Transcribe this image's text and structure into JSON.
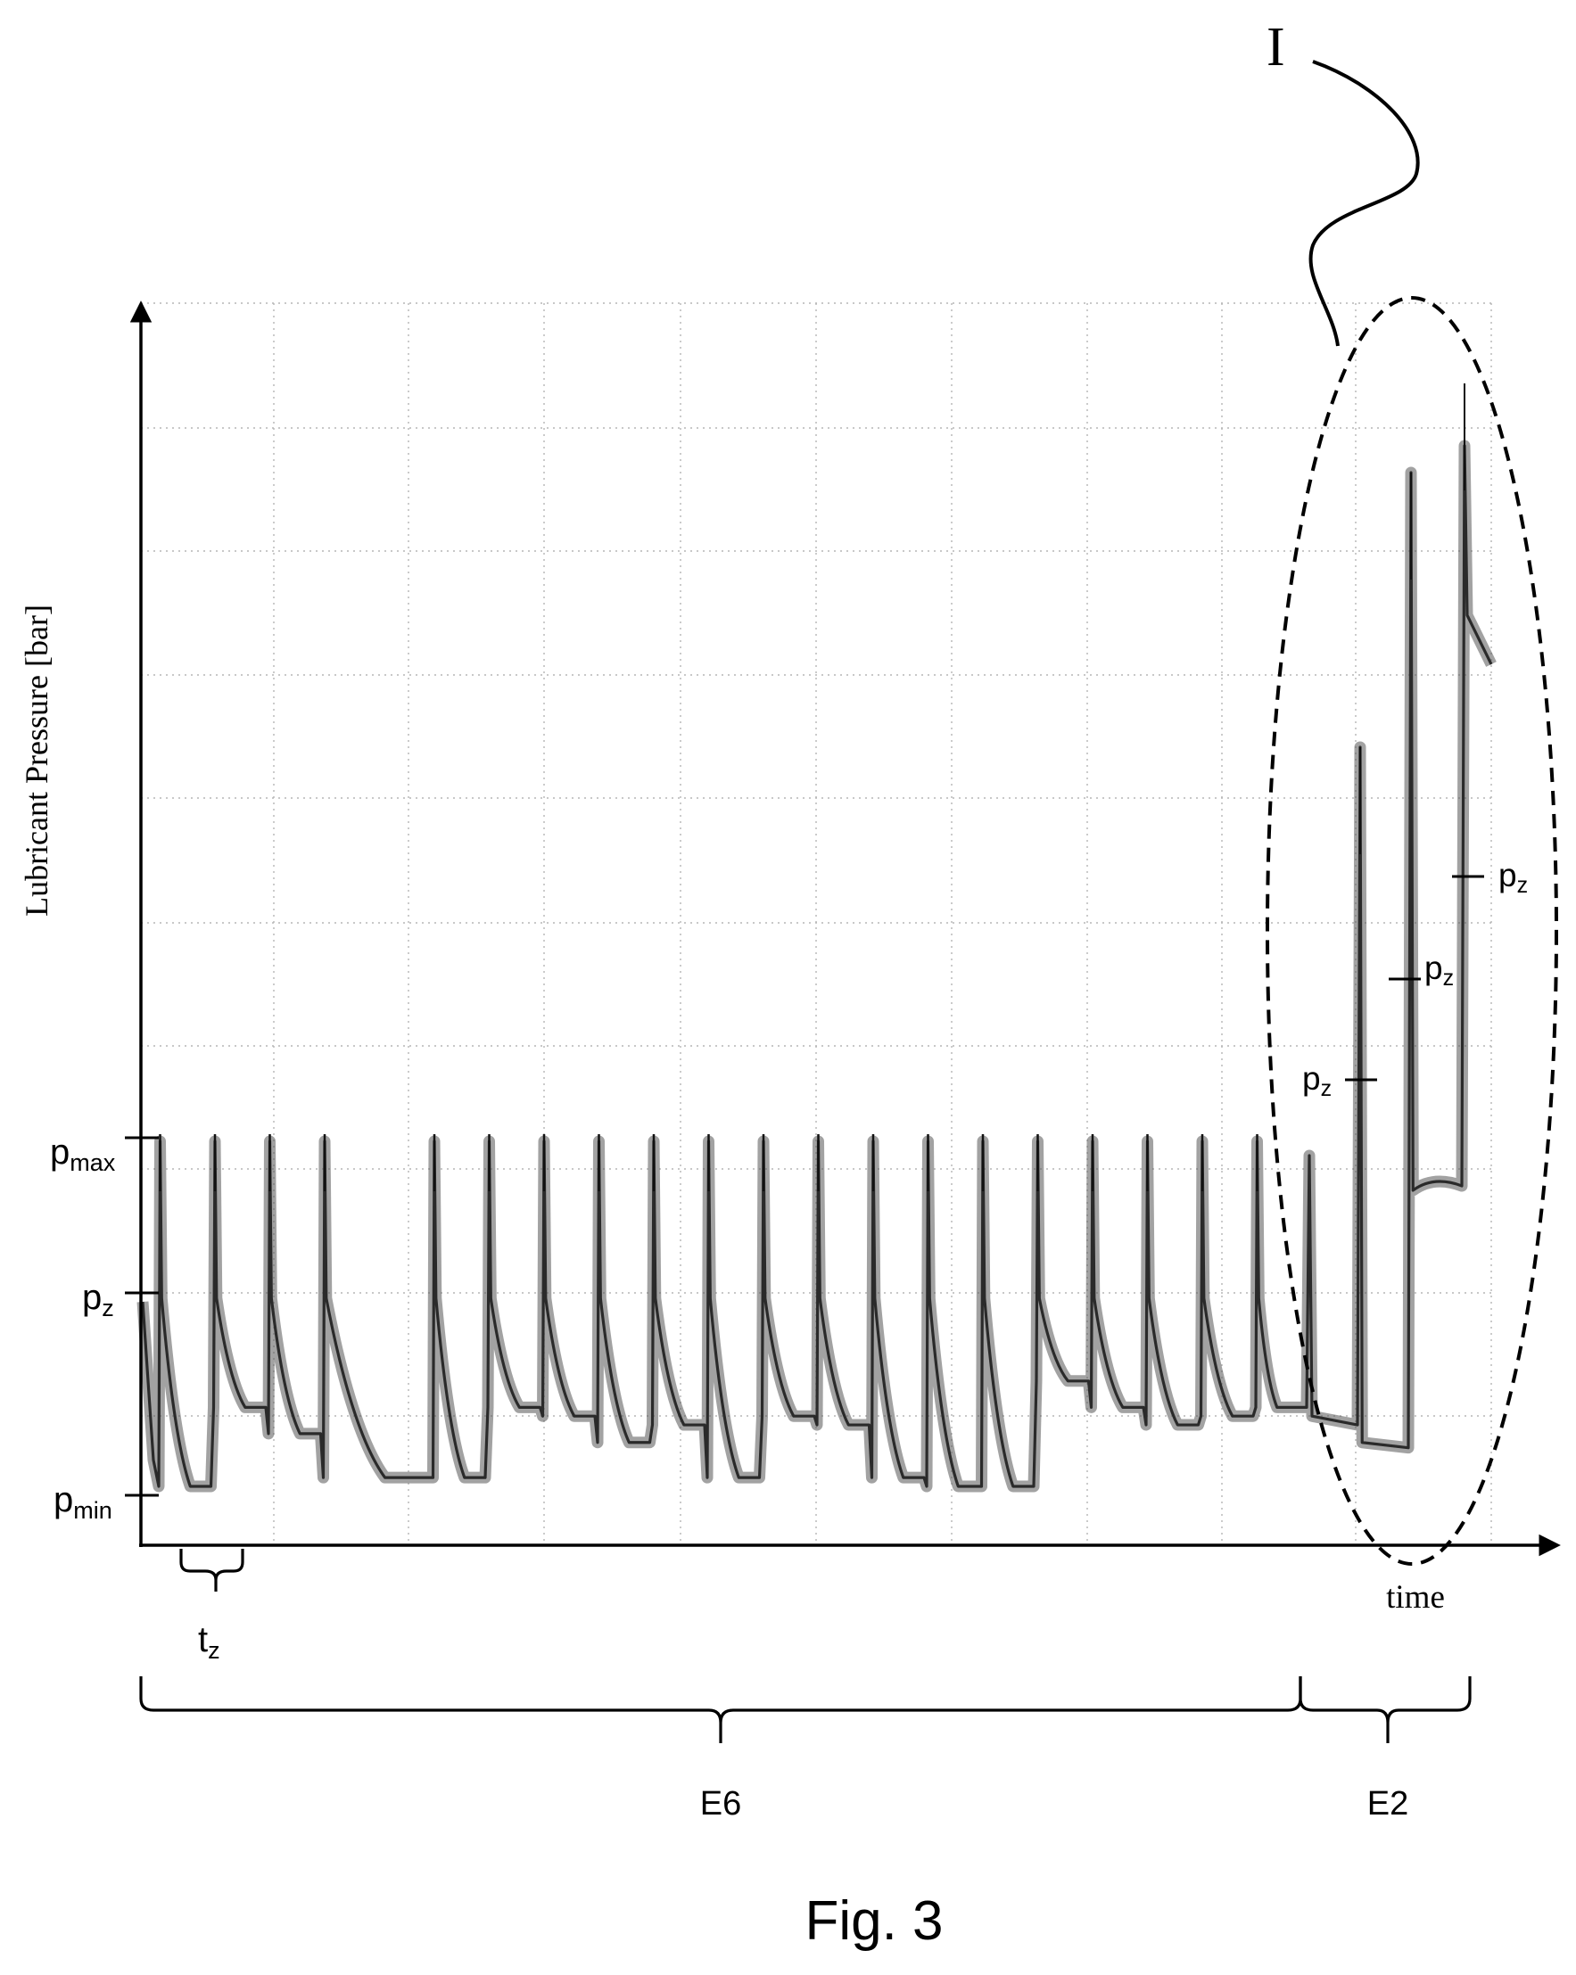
{
  "chart_data": {
    "type": "line",
    "title": "",
    "xlabel": "time",
    "ylabel": "Lubricant Pressure [bar]",
    "grid": true,
    "y_levels": [
      {
        "label_base": "p",
        "label_sub": "max"
      },
      {
        "label_base": "p",
        "label_sub": "z"
      },
      {
        "label_base": "p",
        "label_sub": "min"
      }
    ],
    "regular_cycles": {
      "peak_times": [
        0.13,
        0.54,
        0.95,
        1.36,
        2.18,
        2.59,
        3.0,
        3.41,
        3.82,
        4.23,
        4.64,
        5.05,
        5.46,
        5.87,
        6.28,
        6.69,
        7.1,
        7.51,
        7.92,
        8.33
      ],
      "peak_level": "p_max",
      "trough_levels": [
        "p_min",
        "between p_min and p_z"
      ]
    },
    "ramp_cycles": [
      {
        "peak_time": 9.1,
        "marked_level": "p_z"
      },
      {
        "peak_time": 9.48,
        "marked_level": "p_z"
      },
      {
        "peak_time": 9.88,
        "marked_level": "p_z"
      }
    ],
    "annotations": {
      "period_label_base": "t",
      "period_label_sub": "z",
      "ellipse_label": "I",
      "segment_labels": [
        "E6",
        "E2"
      ]
    },
    "caption": "Fig. 3"
  }
}
